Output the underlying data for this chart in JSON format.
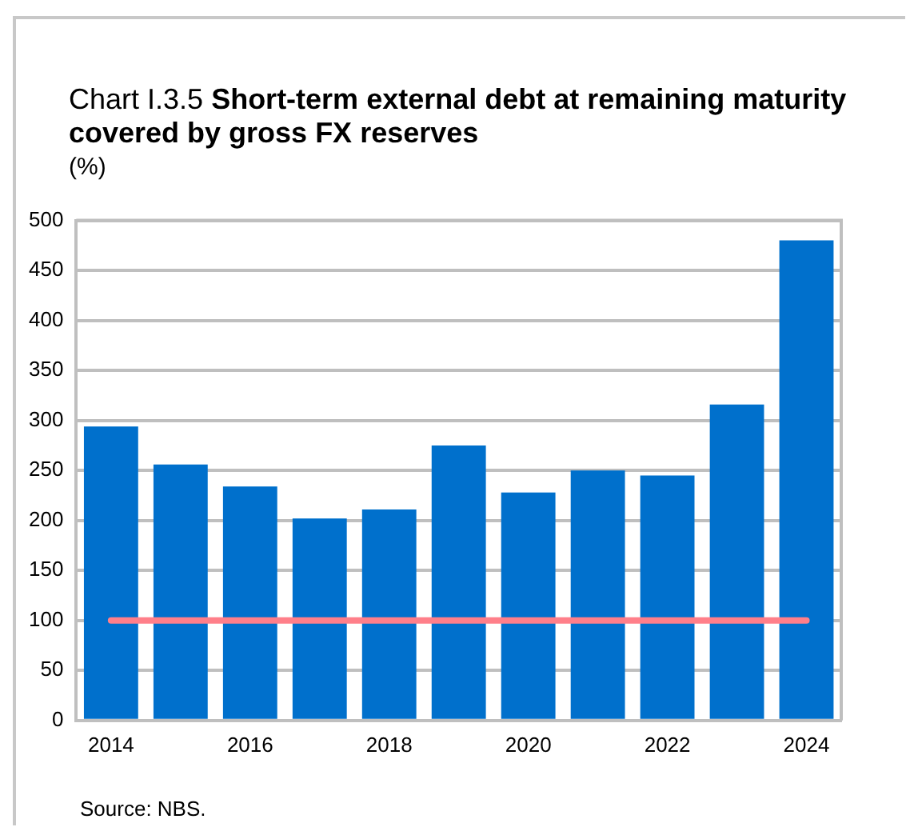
{
  "chart_data": {
    "type": "bar",
    "title": "Chart I.3.5 Short-term external debt at remaining maturity covered by gross FX reserves",
    "ylabel": "(%)",
    "categories": [
      "2014",
      null,
      "2016",
      null,
      "2018",
      null,
      "2020",
      null,
      "2022",
      null,
      "2024"
    ],
    "values": [
      294,
      256,
      234,
      202,
      211,
      275,
      228,
      250,
      245,
      316,
      480
    ],
    "color": "#0070cc",
    "ylim": [
      0,
      500
    ],
    "yticks": [
      0,
      50,
      100,
      150,
      200,
      250,
      300,
      350,
      400,
      450,
      500
    ],
    "grid": "y",
    "ref_lines": [
      {
        "axis": "y",
        "value": 100,
        "color": "#ff7f8a"
      }
    ],
    "annotations": [
      "Source: NBS."
    ]
  }
}
